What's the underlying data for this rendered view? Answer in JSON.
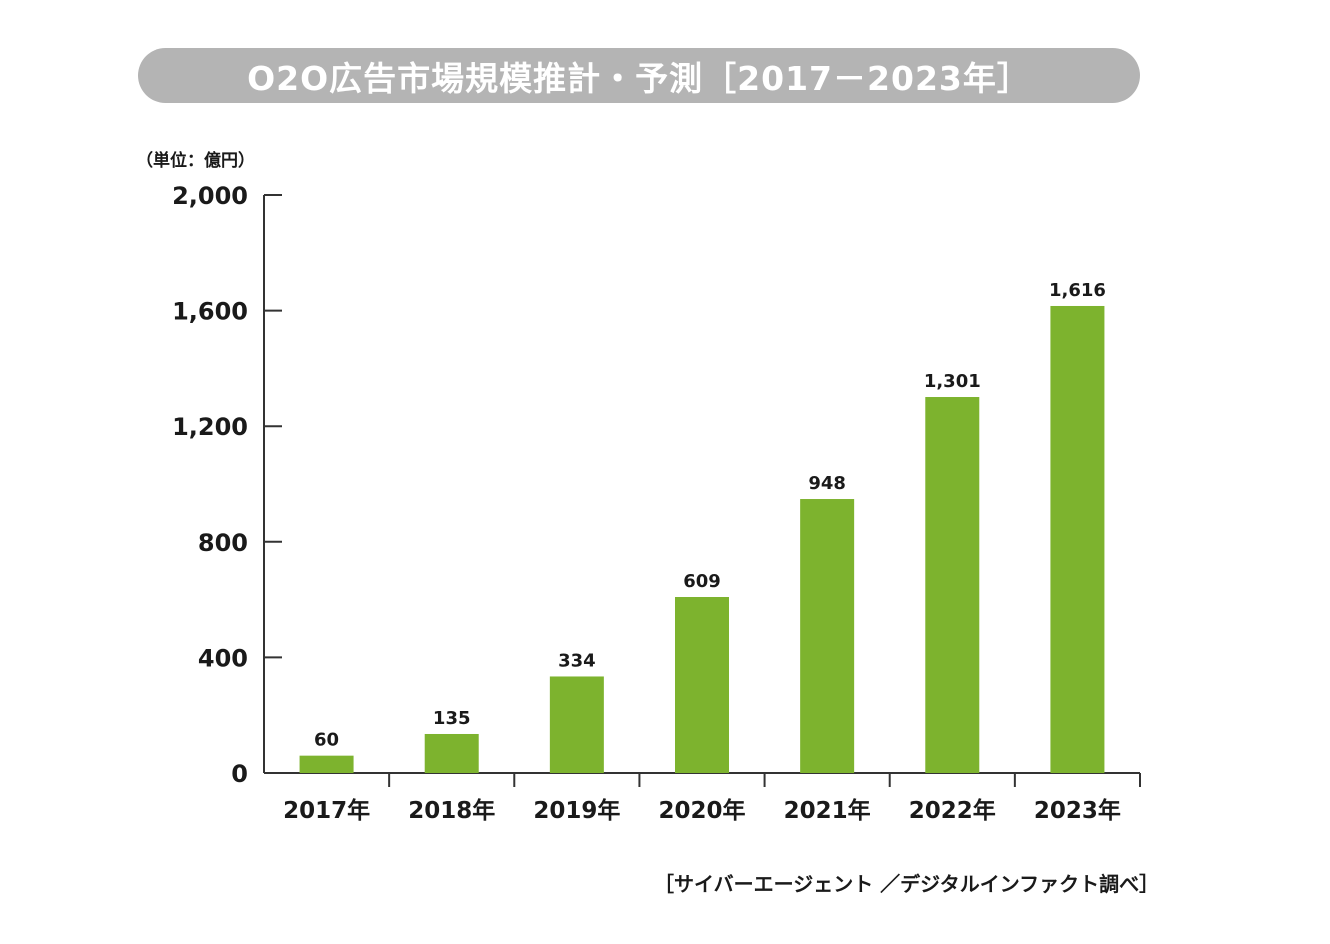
{
  "title": "O2O広告市場規模推計・予測［2017－2023年］",
  "unit_label": "（単位：億円）",
  "source": "［サイバーエージェント ／デジタルインファクト調べ］",
  "colors": {
    "bar": "#7db32e",
    "title_background": "#b4b4b4",
    "axis": "#333333"
  },
  "chart_data": {
    "type": "bar",
    "title": "O2O広告市場規模推計・予測［2017－2023年］",
    "xlabel": "",
    "ylabel": "（単位：億円）",
    "categories": [
      "2017年",
      "2018年",
      "2019年",
      "2020年",
      "2021年",
      "2022年",
      "2023年"
    ],
    "values": [
      60,
      135,
      334,
      609,
      948,
      1301,
      1616
    ],
    "value_labels": [
      "60",
      "135",
      "334",
      "609",
      "948",
      "1,301",
      "1,616"
    ],
    "ylim": [
      0,
      2000
    ],
    "yticks": [
      0,
      400,
      800,
      1200,
      1600,
      2000
    ],
    "ytick_labels": [
      "0",
      "400",
      "800",
      "1,200",
      "1,600",
      "2,000"
    ],
    "grid": false,
    "legend": "none"
  }
}
